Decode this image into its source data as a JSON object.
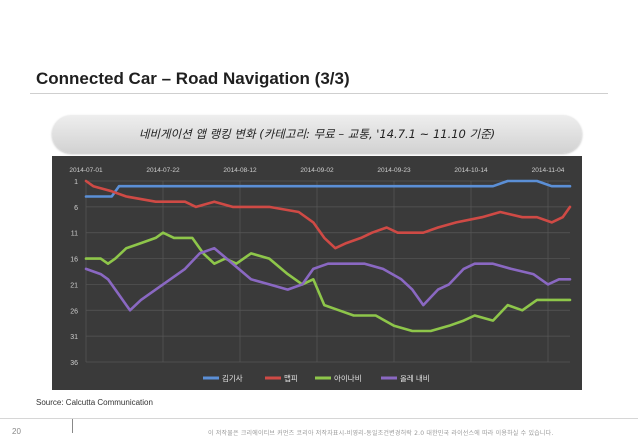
{
  "slide": {
    "title": "Connected Car – Road Navigation (3/3)",
    "subtitle": "네비게이션 앱 랭킹 변화 (카테고리: 무료 – 교통, '14.7.1 ~ 11.10 기준)",
    "source": "Source: Calcutta Communication",
    "page_number": "20",
    "footer_note": "이 저작물은 크리에이티브 커먼즈 코리아 저작자표시-비영리-동일조건변경허락 2.0 대한민국 라이선스에 따라 이용하실 수 있습니다."
  },
  "chart_data": {
    "type": "line",
    "x_dates": [
      "2014-07-01",
      "2014-07-22",
      "2014-08-12",
      "2014-09-02",
      "2014-09-23",
      "2014-10-14",
      "2014-11-04"
    ],
    "x_start": "2014-07-01",
    "x_end": "2014-11-10",
    "y_ticks": [
      1,
      6,
      11,
      16,
      21,
      26,
      31,
      36
    ],
    "ylim": [
      1,
      36
    ],
    "y_inverted": true,
    "grid": true,
    "legend_position": "bottom",
    "series": [
      {
        "name": "김기사",
        "color": "#5b8fd6",
        "points": [
          [
            "2014-07-01",
            4
          ],
          [
            "2014-07-08",
            4
          ],
          [
            "2014-07-10",
            2
          ],
          [
            "2014-07-15",
            2
          ],
          [
            "2014-07-20",
            2
          ],
          [
            "2014-08-01",
            2
          ],
          [
            "2014-08-20",
            2
          ],
          [
            "2014-09-10",
            2
          ],
          [
            "2014-09-15",
            2
          ],
          [
            "2014-09-20",
            2
          ],
          [
            "2014-10-01",
            2
          ],
          [
            "2014-10-15",
            2
          ],
          [
            "2014-10-20",
            2
          ],
          [
            "2014-10-24",
            1
          ],
          [
            "2014-11-01",
            1
          ],
          [
            "2014-11-05",
            2
          ],
          [
            "2014-11-10",
            2
          ]
        ]
      },
      {
        "name": "맵피",
        "color": "#cf4a45",
        "points": [
          [
            "2014-07-01",
            1
          ],
          [
            "2014-07-03",
            2
          ],
          [
            "2014-07-08",
            3
          ],
          [
            "2014-07-12",
            4
          ],
          [
            "2014-07-20",
            5
          ],
          [
            "2014-07-28",
            5
          ],
          [
            "2014-07-31",
            6
          ],
          [
            "2014-08-05",
            5
          ],
          [
            "2014-08-10",
            6
          ],
          [
            "2014-08-20",
            6
          ],
          [
            "2014-08-28",
            7
          ],
          [
            "2014-09-01",
            9
          ],
          [
            "2014-09-04",
            12
          ],
          [
            "2014-09-07",
            14
          ],
          [
            "2014-09-10",
            13
          ],
          [
            "2014-09-14",
            12
          ],
          [
            "2014-09-17",
            11
          ],
          [
            "2014-09-21",
            10
          ],
          [
            "2014-09-24",
            11
          ],
          [
            "2014-10-01",
            11
          ],
          [
            "2014-10-05",
            10
          ],
          [
            "2014-10-10",
            9
          ],
          [
            "2014-10-17",
            8
          ],
          [
            "2014-10-22",
            7
          ],
          [
            "2014-10-28",
            8
          ],
          [
            "2014-11-01",
            8
          ],
          [
            "2014-11-05",
            9
          ],
          [
            "2014-11-08",
            8
          ],
          [
            "2014-11-10",
            6
          ]
        ]
      },
      {
        "name": "아이나비",
        "color": "#8ec64a",
        "points": [
          [
            "2014-07-01",
            16
          ],
          [
            "2014-07-05",
            16
          ],
          [
            "2014-07-07",
            17
          ],
          [
            "2014-07-09",
            16
          ],
          [
            "2014-07-12",
            14
          ],
          [
            "2014-07-16",
            13
          ],
          [
            "2014-07-20",
            12
          ],
          [
            "2014-07-22",
            11
          ],
          [
            "2014-07-25",
            12
          ],
          [
            "2014-07-30",
            12
          ],
          [
            "2014-08-02",
            15
          ],
          [
            "2014-08-05",
            17
          ],
          [
            "2014-08-08",
            16
          ],
          [
            "2014-08-11",
            17
          ],
          [
            "2014-08-15",
            15
          ],
          [
            "2014-08-20",
            16
          ],
          [
            "2014-08-25",
            19
          ],
          [
            "2014-08-29",
            21
          ],
          [
            "2014-09-01",
            20
          ],
          [
            "2014-09-04",
            25
          ],
          [
            "2014-09-08",
            26
          ],
          [
            "2014-09-12",
            27
          ],
          [
            "2014-09-18",
            27
          ],
          [
            "2014-09-23",
            29
          ],
          [
            "2014-09-28",
            30
          ],
          [
            "2014-10-03",
            30
          ],
          [
            "2014-10-08",
            29
          ],
          [
            "2014-10-12",
            28
          ],
          [
            "2014-10-15",
            27
          ],
          [
            "2014-10-20",
            28
          ],
          [
            "2014-10-24",
            25
          ],
          [
            "2014-10-28",
            26
          ],
          [
            "2014-11-01",
            24
          ],
          [
            "2014-11-05",
            24
          ],
          [
            "2014-11-10",
            24
          ]
        ]
      },
      {
        "name": "올레 내비",
        "color": "#8a68c2",
        "points": [
          [
            "2014-07-01",
            18
          ],
          [
            "2014-07-05",
            19
          ],
          [
            "2014-07-07",
            20
          ],
          [
            "2014-07-10",
            23
          ],
          [
            "2014-07-13",
            26
          ],
          [
            "2014-07-16",
            24
          ],
          [
            "2014-07-20",
            22
          ],
          [
            "2014-07-24",
            20
          ],
          [
            "2014-07-28",
            18
          ],
          [
            "2014-08-01",
            15
          ],
          [
            "2014-08-05",
            14
          ],
          [
            "2014-08-10",
            17
          ],
          [
            "2014-08-15",
            20
          ],
          [
            "2014-08-20",
            21
          ],
          [
            "2014-08-25",
            22
          ],
          [
            "2014-08-29",
            21
          ],
          [
            "2014-09-01",
            18
          ],
          [
            "2014-09-05",
            17
          ],
          [
            "2014-09-10",
            17
          ],
          [
            "2014-09-15",
            17
          ],
          [
            "2014-09-20",
            18
          ],
          [
            "2014-09-25",
            20
          ],
          [
            "2014-09-28",
            22
          ],
          [
            "2014-10-01",
            25
          ],
          [
            "2014-10-05",
            22
          ],
          [
            "2014-10-08",
            21
          ],
          [
            "2014-10-12",
            18
          ],
          [
            "2014-10-15",
            17
          ],
          [
            "2014-10-20",
            17
          ],
          [
            "2014-10-25",
            18
          ],
          [
            "2014-10-31",
            19
          ],
          [
            "2014-11-04",
            21
          ],
          [
            "2014-11-07",
            20
          ],
          [
            "2014-11-10",
            20
          ]
        ]
      }
    ]
  }
}
